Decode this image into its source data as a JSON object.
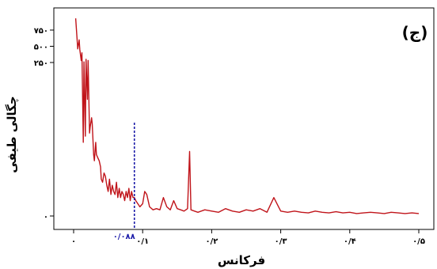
{
  "chart_data": {
    "type": "line",
    "panel_label": "(ج)",
    "xlabel": "فرکانس",
    "ylabel": "چگالی طیفی",
    "xlim": [
      0,
      0.5
    ],
    "x_ticks": [
      {
        "value": 0,
        "label": "۰"
      },
      {
        "value": 0.1,
        "label": "۰/۱"
      },
      {
        "value": 0.2,
        "label": "۰/۲"
      },
      {
        "value": 0.3,
        "label": "۰/۳"
      },
      {
        "value": 0.4,
        "label": "۰/۴"
      },
      {
        "value": 0.5,
        "label": "۰/۵"
      }
    ],
    "y_ticks": [
      {
        "value": 0,
        "label": "۰"
      },
      {
        "value": 250,
        "label": "۲۵۰"
      },
      {
        "value": 500,
        "label": "۵۰۰"
      },
      {
        "value": 750,
        "label": "۷۵۰"
      }
    ],
    "series_color": "#c0141a",
    "marker": {
      "x": 0.088,
      "label": "۰/۰۸۸",
      "color": "#1a1aa8"
    },
    "x": [
      0.003,
      0.006,
      0.008,
      0.009,
      0.011,
      0.012,
      0.014,
      0.015,
      0.017,
      0.018,
      0.02,
      0.021,
      0.023,
      0.024,
      0.026,
      0.027,
      0.029,
      0.03,
      0.032,
      0.033,
      0.035,
      0.037,
      0.039,
      0.04,
      0.042,
      0.044,
      0.046,
      0.048,
      0.05,
      0.052,
      0.054,
      0.056,
      0.058,
      0.06,
      0.062,
      0.064,
      0.066,
      0.068,
      0.07,
      0.072,
      0.074,
      0.076,
      0.078,
      0.08,
      0.082,
      0.084,
      0.086,
      0.088,
      0.09,
      0.093,
      0.096,
      0.1,
      0.103,
      0.106,
      0.11,
      0.115,
      0.12,
      0.125,
      0.13,
      0.135,
      0.14,
      0.145,
      0.15,
      0.155,
      0.16,
      0.165,
      0.168,
      0.17,
      0.175,
      0.18,
      0.19,
      0.2,
      0.21,
      0.22,
      0.23,
      0.24,
      0.25,
      0.26,
      0.27,
      0.28,
      0.29,
      0.3,
      0.31,
      0.32,
      0.33,
      0.34,
      0.35,
      0.36,
      0.37,
      0.38,
      0.39,
      0.4,
      0.41,
      0.42,
      0.43,
      0.44,
      0.45,
      0.46,
      0.47,
      0.48,
      0.49,
      0.5
    ],
    "y": [
      930,
      460,
      600,
      450,
      280,
      400,
      120,
      260,
      130,
      300,
      190,
      280,
      135,
      145,
      160,
      150,
      100,
      90,
      120,
      100,
      95,
      90,
      80,
      60,
      55,
      70,
      65,
      50,
      40,
      60,
      35,
      50,
      40,
      35,
      55,
      30,
      45,
      30,
      40,
      35,
      25,
      40,
      30,
      45,
      25,
      40,
      30,
      30,
      25,
      20,
      15,
      20,
      40,
      35,
      15,
      10,
      12,
      10,
      30,
      15,
      10,
      25,
      12,
      10,
      8,
      12,
      105,
      10,
      8,
      6,
      10,
      8,
      6,
      12,
      8,
      6,
      10,
      8,
      12,
      6,
      30,
      8,
      6,
      8,
      6,
      5,
      8,
      6,
      5,
      7,
      5,
      6,
      4,
      5,
      6,
      5,
      4,
      6,
      5,
      4,
      5,
      4
    ]
  }
}
